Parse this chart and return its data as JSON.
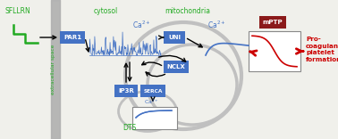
{
  "bg_color": "#f0f0eb",
  "box_color": "#4472c4",
  "box_text_color": "white",
  "mPTP_bg": "#8b1a1a",
  "arrow_color_black": "black",
  "arrow_color_red": "#cc0000",
  "green_color": "#22aa22",
  "blue_signal_color": "#4472c4",
  "red_signal_color": "#cc0000",
  "wall_color": "#b0b0b0",
  "mito_circle_color": "#c0c0c0",
  "sfllrn_label": "SFLLRN",
  "cytosol_label": "cytosol",
  "mitochondria_label": "mitochondria",
  "extracellular_label": "extracellular space",
  "dts_label": "DTS",
  "pro_coag_text": "Pro-\ncoagulant\nplatelet\nformation"
}
